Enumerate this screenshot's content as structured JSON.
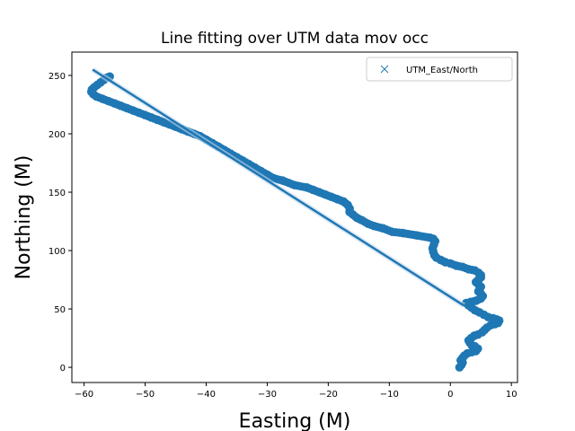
{
  "chart_data": {
    "type": "scatter",
    "title": "Line fitting over UTM data mov occ",
    "xlabel": "Easting (M)",
    "ylabel": "Northing (M)",
    "xlim": [
      -62,
      11
    ],
    "ylim": [
      -13,
      270
    ],
    "xticks": [
      -60,
      -50,
      -40,
      -30,
      -20,
      -10,
      0,
      10
    ],
    "xtick_labels": [
      "−60",
      "−50",
      "−40",
      "−30",
      "−20",
      "−10",
      "0",
      "10"
    ],
    "yticks": [
      0,
      50,
      100,
      150,
      200,
      250
    ],
    "ytick_labels": [
      "0",
      "50",
      "100",
      "150",
      "200",
      "250"
    ],
    "grid": false,
    "legend": {
      "position": "top-right",
      "entries": [
        {
          "label": "UTM_East/North",
          "marker": "x"
        }
      ]
    },
    "color": "#1f77b4",
    "series": [
      {
        "name": "UTM_East/North",
        "kind": "scatter",
        "points": [
          [
            1.5,
            0
          ],
          [
            1.8,
            2
          ],
          [
            2.0,
            4
          ],
          [
            1.7,
            6
          ],
          [
            2.0,
            8
          ],
          [
            2.3,
            10
          ],
          [
            2.8,
            12
          ],
          [
            3.5,
            13
          ],
          [
            4.2,
            14
          ],
          [
            4.5,
            16
          ],
          [
            4.0,
            18
          ],
          [
            3.5,
            19
          ],
          [
            3.2,
            21
          ],
          [
            3.0,
            23
          ],
          [
            3.4,
            25
          ],
          [
            3.9,
            27
          ],
          [
            4.5,
            28
          ],
          [
            5.2,
            30
          ],
          [
            5.6,
            32
          ],
          [
            6.0,
            34
          ],
          [
            6.6,
            36
          ],
          [
            7.3,
            37
          ],
          [
            7.8,
            38
          ],
          [
            8.0,
            40
          ],
          [
            7.6,
            41
          ],
          [
            7.0,
            42
          ],
          [
            6.2,
            43
          ],
          [
            5.5,
            45
          ],
          [
            4.8,
            47
          ],
          [
            4.0,
            49
          ],
          [
            3.5,
            51
          ],
          [
            3.0,
            53
          ],
          [
            2.6,
            55
          ],
          [
            3.3,
            56
          ],
          [
            4.2,
            57
          ],
          [
            5.0,
            59
          ],
          [
            5.3,
            61
          ],
          [
            5.0,
            63
          ],
          [
            4.6,
            65
          ],
          [
            4.8,
            67
          ],
          [
            5.0,
            69
          ],
          [
            4.6,
            71
          ],
          [
            4.2,
            73
          ],
          [
            4.6,
            75
          ],
          [
            5.0,
            77
          ],
          [
            5.0,
            79
          ],
          [
            4.6,
            81
          ],
          [
            4.0,
            83
          ],
          [
            3.0,
            84
          ],
          [
            2.0,
            86
          ],
          [
            1.0,
            87
          ],
          [
            0.0,
            89
          ],
          [
            -0.8,
            90
          ],
          [
            -1.6,
            92
          ],
          [
            -2.3,
            94
          ],
          [
            -2.6,
            96
          ],
          [
            -2.8,
            99
          ],
          [
            -2.9,
            102
          ],
          [
            -2.7,
            105
          ],
          [
            -2.5,
            108
          ],
          [
            -2.8,
            110
          ],
          [
            -3.3,
            111
          ],
          [
            -5.5,
            113
          ],
          [
            -7.8,
            115
          ],
          [
            -9.5,
            116
          ],
          [
            -11,
            119
          ],
          [
            -12.5,
            121
          ],
          [
            -13.5,
            123
          ],
          [
            -14.5,
            126
          ],
          [
            -15.3,
            128
          ],
          [
            -16.0,
            131
          ],
          [
            -16.5,
            133
          ],
          [
            -16.5,
            136
          ],
          [
            -16.8,
            139
          ],
          [
            -17.5,
            142
          ],
          [
            -18.5,
            144
          ],
          [
            -19.5,
            146
          ],
          [
            -20.5,
            148
          ],
          [
            -21.5,
            150
          ],
          [
            -22.5,
            152
          ],
          [
            -23.5,
            154
          ],
          [
            -25.5,
            156
          ],
          [
            -27.5,
            160
          ],
          [
            -29,
            162
          ],
          [
            -30,
            165
          ],
          [
            -31,
            168
          ],
          [
            -32,
            171
          ],
          [
            -33,
            174
          ],
          [
            -34,
            177
          ],
          [
            -35,
            180
          ],
          [
            -36,
            183
          ],
          [
            -37,
            186
          ],
          [
            -38,
            189
          ],
          [
            -39,
            192
          ],
          [
            -40,
            195
          ],
          [
            -41,
            198
          ],
          [
            -42,
            200
          ],
          [
            -43,
            202
          ],
          [
            -44,
            204
          ],
          [
            -45,
            206
          ],
          [
            -46,
            208
          ],
          [
            -47,
            210
          ],
          [
            -48,
            212
          ],
          [
            -49,
            214
          ],
          [
            -50,
            216
          ],
          [
            -51,
            218
          ],
          [
            -52,
            220
          ],
          [
            -53,
            222
          ],
          [
            -54,
            224
          ],
          [
            -55,
            226
          ],
          [
            -56,
            228
          ],
          [
            -57,
            230
          ],
          [
            -58,
            232
          ],
          [
            -58.5,
            234
          ],
          [
            -58.8,
            236
          ],
          [
            -58.7,
            238
          ],
          [
            -58.3,
            240
          ],
          [
            -57.8,
            242
          ],
          [
            -57.3,
            244
          ],
          [
            -56.8,
            246
          ],
          [
            -56.3,
            248
          ],
          [
            -55.8,
            249
          ]
        ]
      },
      {
        "name": "fit",
        "kind": "line",
        "points": [
          [
            -58.6,
            255
          ],
          [
            2.2,
            53
          ]
        ]
      }
    ]
  }
}
